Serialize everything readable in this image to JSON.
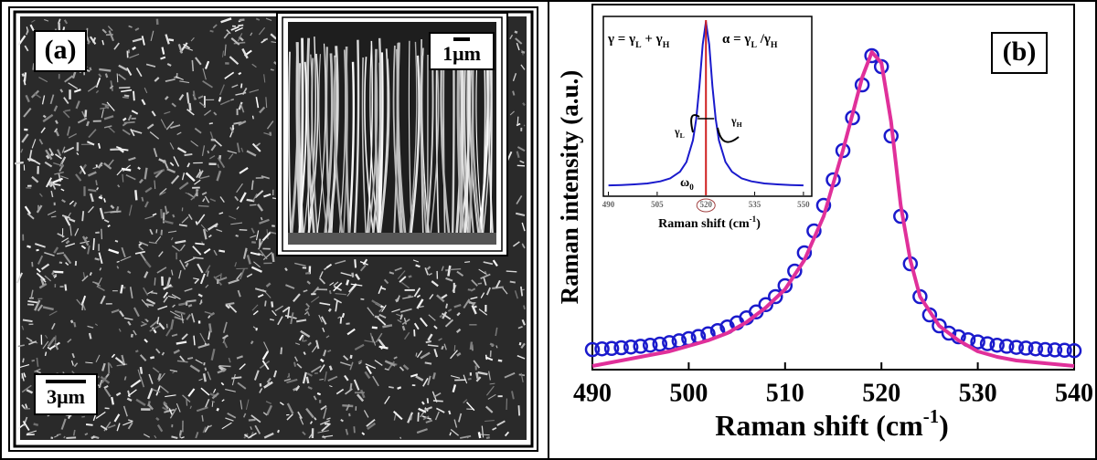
{
  "panel_a": {
    "label": "(a)",
    "scale_bar": "3μm",
    "inset_scale_bar": "1μm"
  },
  "chart_data": [
    {
      "type": "line",
      "label": "(b)",
      "xlabel": [
        "Raman shift (cm",
        "-1",
        ")"
      ],
      "ylabel": "Raman intensity (a.u.)",
      "xlim": [
        490,
        540
      ],
      "ylim": [
        0,
        1
      ],
      "xticks": [
        490,
        500,
        510,
        520,
        530,
        540
      ],
      "series": [
        {
          "style": "marker",
          "color": "#1a1acc",
          "x": [
            490,
            491,
            492,
            493,
            494,
            495,
            496,
            497,
            498,
            499,
            500,
            501,
            502,
            503,
            504,
            505,
            506,
            507,
            508,
            509,
            510,
            511,
            512,
            513,
            514,
            515,
            516,
            517,
            518,
            519,
            520,
            521,
            522,
            523,
            524,
            525,
            526,
            527,
            528,
            529,
            530,
            531,
            532,
            533,
            534,
            535,
            536,
            537,
            538,
            539,
            540
          ],
          "values": [
            0.055,
            0.057,
            0.058,
            0.06,
            0.062,
            0.064,
            0.067,
            0.07,
            0.074,
            0.079,
            0.085,
            0.091,
            0.098,
            0.107,
            0.117,
            0.128,
            0.142,
            0.158,
            0.178,
            0.2,
            0.23,
            0.27,
            0.32,
            0.38,
            0.45,
            0.52,
            0.6,
            0.69,
            0.78,
            0.86,
            0.83,
            0.64,
            0.42,
            0.29,
            0.2,
            0.15,
            0.12,
            0.1,
            0.09,
            0.082,
            0.076,
            0.071,
            0.067,
            0.064,
            0.061,
            0.059,
            0.057,
            0.055,
            0.054,
            0.053,
            0.052
          ]
        },
        {
          "style": "line",
          "color": "#e0309a",
          "x": [
            490,
            492,
            494,
            496,
            498,
            500,
            502,
            504,
            506,
            508,
            510,
            512,
            514,
            516,
            517,
            518,
            519,
            520,
            521,
            522,
            523,
            524,
            526,
            528,
            530,
            532,
            534,
            536,
            538,
            540
          ],
          "values": [
            0.01,
            0.02,
            0.03,
            0.04,
            0.05,
            0.065,
            0.08,
            0.1,
            0.13,
            0.17,
            0.22,
            0.3,
            0.42,
            0.6,
            0.7,
            0.8,
            0.87,
            0.84,
            0.68,
            0.45,
            0.3,
            0.2,
            0.12,
            0.08,
            0.05,
            0.035,
            0.025,
            0.02,
            0.015,
            0.01
          ]
        }
      ]
    },
    {
      "type": "line",
      "xlabel": [
        "Raman shift (cm",
        "-1",
        ")"
      ],
      "xlim": [
        489,
        552
      ],
      "ylim": [
        0,
        1
      ],
      "xticks": [
        490,
        505,
        520,
        535,
        550
      ],
      "annotations": [
        [
          "γ = γ",
          "L",
          " + γ",
          "H"
        ],
        [
          "α = γ",
          "L",
          " /γ",
          "H"
        ],
        [
          "γ",
          "L"
        ],
        [
          "γ",
          "H"
        ],
        [
          "ω",
          "0"
        ]
      ],
      "series": [
        {
          "style": "line",
          "color": "#1a1acc",
          "x": [
            490,
            494,
            498,
            502,
            506,
            509,
            512,
            514,
            516,
            517,
            518,
            519,
            520,
            521,
            522,
            523,
            524,
            526,
            528,
            531,
            534,
            538,
            542,
            546,
            550
          ],
          "values": [
            0.056,
            0.0585,
            0.062,
            0.067,
            0.079,
            0.096,
            0.133,
            0.188,
            0.311,
            0.431,
            0.617,
            0.852,
            0.98,
            0.852,
            0.617,
            0.431,
            0.311,
            0.188,
            0.133,
            0.096,
            0.079,
            0.067,
            0.062,
            0.0585,
            0.056
          ]
        }
      ]
    }
  ]
}
